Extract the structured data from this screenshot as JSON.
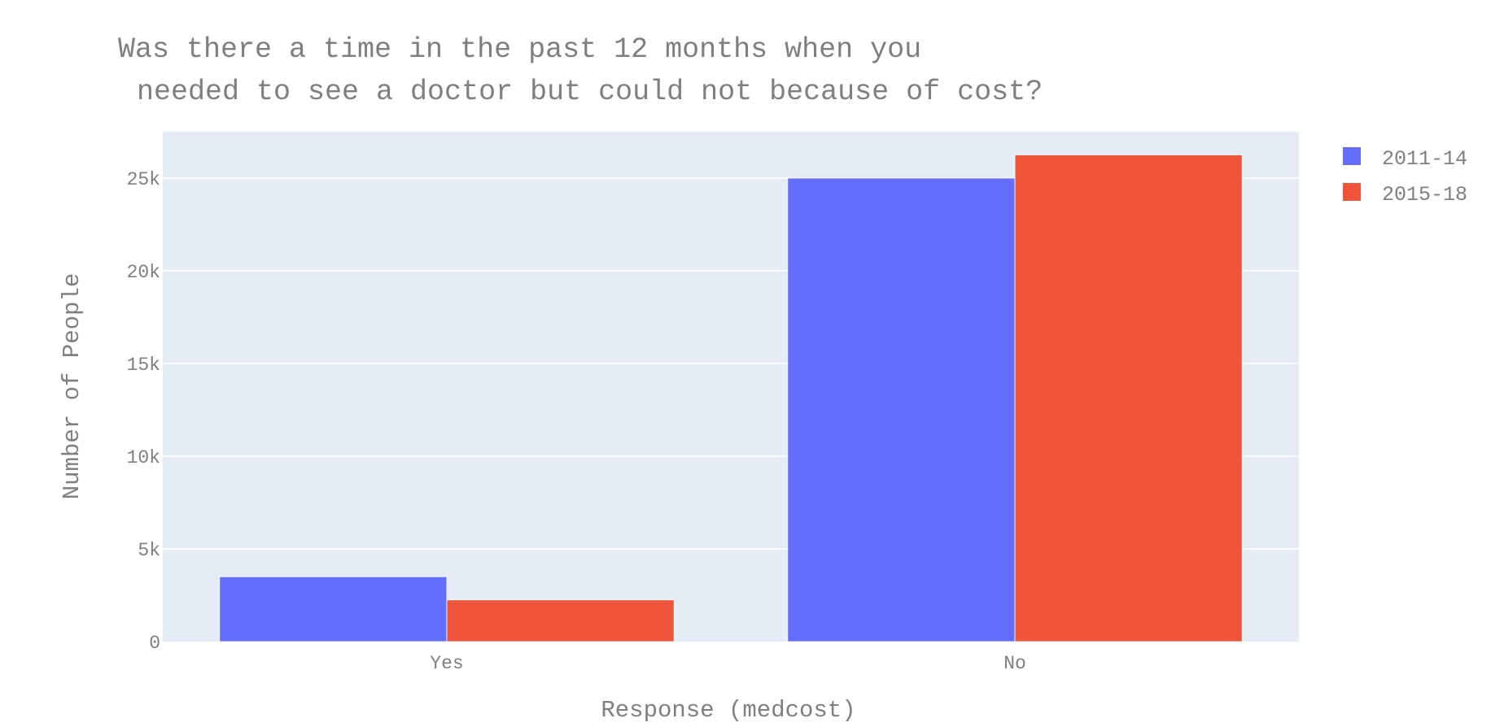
{
  "chart_data": {
    "type": "bar",
    "title_lines": [
      "Was there a time in the past 12 months when you",
      "needed to see a doctor but could not because of cost?"
    ],
    "xlabel": "Response (medcost)",
    "ylabel": "Number of People",
    "categories": [
      "Yes",
      "No"
    ],
    "series": [
      {
        "name": "2011-14",
        "color": "#636efa",
        "values": [
          3500,
          25000
        ]
      },
      {
        "name": "2015-18",
        "color": "#ef553b",
        "values": [
          2250,
          26250
        ]
      }
    ],
    "ylim": [
      0,
      27500
    ],
    "yticks": [
      0,
      5000,
      10000,
      15000,
      20000,
      25000
    ],
    "ytick_labels": [
      "0",
      "5k",
      "10k",
      "15k",
      "20k",
      "25k"
    ],
    "grid": true,
    "legend_position": "top-right",
    "plot_background": "#e5ecf6"
  }
}
